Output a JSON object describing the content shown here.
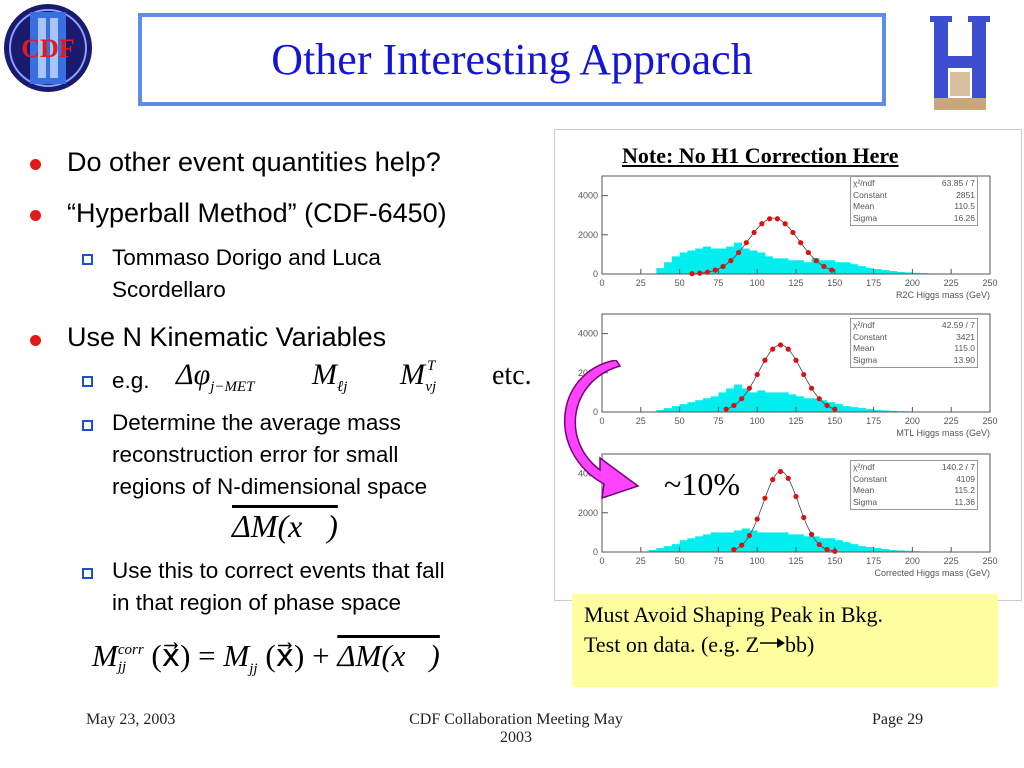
{
  "title": "Other Interesting Approach",
  "logos": {
    "left_text": "CDF",
    "right_text": "H"
  },
  "bullets": {
    "b1": "Do other event quantities help?",
    "b2": "“Hyperball Method” (CDF-6450)",
    "b2_sub_line1": "Tommaso Dorigo and Luca",
    "b2_sub_line2": "Scordellaro",
    "b3": "Use N Kinematic Variables",
    "eg_label": "e.g.",
    "eg_var1": "Δφ",
    "eg_var1_sub": "j−MET",
    "eg_var2": "M",
    "eg_var2_sub": "ℓj",
    "eg_var3": "M",
    "eg_var3_sup": "T",
    "eg_var3_sub": "νj",
    "eg_etc": "etc.",
    "determine_line1": "Determine the average mass",
    "determine_line2": "reconstruction error for small",
    "determine_line3": "regions of N-dimensional space",
    "delta_m_formula": "ΔM(x⃗)",
    "use_line1": "Use this to correct events that fall",
    "use_line2": "in that region of phase space"
  },
  "formula": {
    "m": "M",
    "sup": "corr",
    "sub": "jj",
    "args": "(x⃗) = ",
    "m2": "M",
    "sub2": "jj",
    "args2": "(x⃗) +",
    "delta_term": "ΔM(x⃗)"
  },
  "note": "Note: No H1 Correction Here",
  "arrow_label": "~10%",
  "yellow_box": {
    "line1": "Must Avoid Shaping Peak in Bkg.",
    "line2_a": "Test on data.  (e.g. Z",
    "line2_b": "bb)"
  },
  "footer": {
    "date": "May 23, 2003",
    "meeting_line1": "CDF Collaboration Meeting May",
    "meeting_line2": "2003",
    "page": "Page 29"
  },
  "colors": {
    "title": "#1515d8",
    "title_border": "#5c8de8",
    "bullet": "#e21a1a",
    "square": "#1a52c8",
    "hist": "#00eeee",
    "fit": "#dd1111",
    "arrow": "#ff33ff",
    "yellow": "#ffff9f"
  },
  "chart_data": [
    {
      "type": "bar",
      "xlabel": "R2C Higgs mass (GeV)",
      "xlim": [
        0,
        250
      ],
      "ylim": [
        0,
        5000
      ],
      "yticks": [
        0,
        2000,
        4000
      ],
      "xticks": [
        0,
        25,
        50,
        75,
        100,
        125,
        150,
        175,
        200,
        225,
        250
      ],
      "stats": [
        [
          "χ²/ndf",
          "63.85  /  7"
        ],
        [
          "Constant",
          "2851"
        ],
        [
          "Mean",
          "110.5"
        ],
        [
          "Sigma",
          "16.26"
        ]
      ],
      "histogram": [
        0,
        0,
        0,
        0,
        0,
        0,
        0,
        300,
        600,
        900,
        1100,
        1200,
        1300,
        1400,
        1300,
        1300,
        1400,
        1600,
        1300,
        1200,
        1100,
        900,
        800,
        800,
        700,
        700,
        600,
        800,
        700,
        700,
        600,
        600,
        500,
        400,
        300,
        250,
        200,
        150,
        100,
        80,
        60,
        40,
        30,
        20,
        0,
        0,
        0,
        0,
        0,
        0
      ],
      "fit_peak": 2851,
      "fit_mean": 110.5,
      "fit_sigma": 16.26,
      "fit_range": [
        58,
        150
      ]
    },
    {
      "type": "bar",
      "xlabel": "MTL Higgs mass (GeV)",
      "xlim": [
        0,
        250
      ],
      "ylim": [
        0,
        5000
      ],
      "yticks": [
        0,
        2000,
        4000
      ],
      "xticks": [
        0,
        25,
        50,
        75,
        100,
        125,
        150,
        175,
        200,
        225,
        250
      ],
      "stats": [
        [
          "χ²/ndf",
          "42.59  /  7"
        ],
        [
          "Constant",
          "3421"
        ],
        [
          "Mean",
          "115.0"
        ],
        [
          "Sigma",
          "13.90"
        ]
      ],
      "histogram": [
        0,
        0,
        0,
        0,
        0,
        0,
        0,
        100,
        200,
        300,
        400,
        500,
        600,
        700,
        800,
        1000,
        1200,
        1400,
        1200,
        1000,
        1100,
        1000,
        1000,
        1000,
        900,
        800,
        700,
        700,
        600,
        500,
        400,
        300,
        250,
        200,
        150,
        100,
        80,
        60,
        40,
        30,
        20,
        10,
        0,
        0,
        0,
        0,
        0,
        0,
        0,
        0
      ],
      "fit_peak": 3421,
      "fit_mean": 115.0,
      "fit_sigma": 13.9,
      "fit_range": [
        80,
        150
      ]
    },
    {
      "type": "bar",
      "xlabel": "Corrected Higgs mass (GeV)",
      "xlim": [
        0,
        250
      ],
      "ylim": [
        0,
        5000
      ],
      "yticks": [
        0,
        2000,
        4000
      ],
      "xticks": [
        0,
        25,
        50,
        75,
        100,
        125,
        150,
        175,
        200,
        225,
        250
      ],
      "stats": [
        [
          "χ²/ndf",
          "140.2  /  7"
        ],
        [
          "Constant",
          "4109"
        ],
        [
          "Mean",
          "115.2"
        ],
        [
          "Sigma",
          "11.36"
        ]
      ],
      "histogram": [
        0,
        0,
        0,
        0,
        0,
        0,
        100,
        200,
        300,
        400,
        600,
        700,
        800,
        900,
        1000,
        1000,
        1000,
        1100,
        1200,
        1100,
        1000,
        1000,
        1000,
        1000,
        900,
        900,
        800,
        800,
        700,
        700,
        600,
        500,
        400,
        300,
        250,
        200,
        150,
        100,
        80,
        60,
        40,
        30,
        20,
        10,
        0,
        0,
        0,
        0,
        0,
        0
      ],
      "fit_peak": 4109,
      "fit_mean": 115.2,
      "fit_sigma": 11.36,
      "fit_range": [
        85,
        150
      ]
    }
  ]
}
